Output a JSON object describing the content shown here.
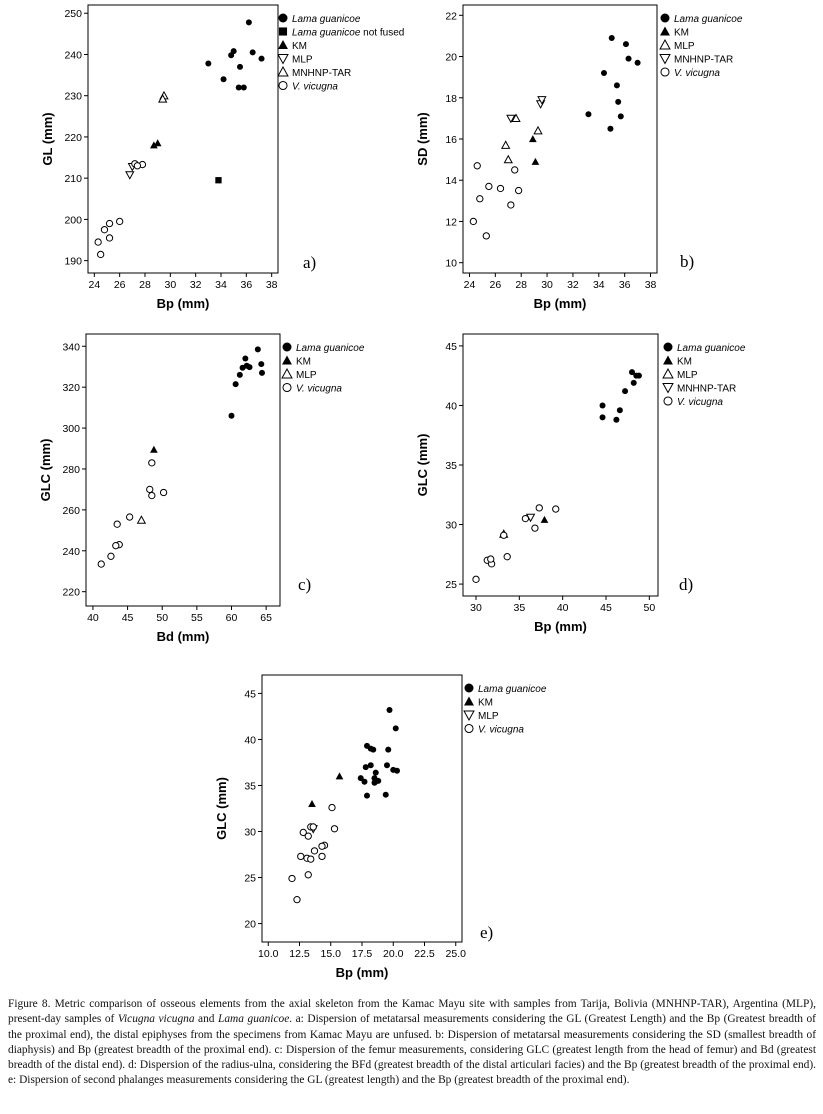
{
  "figure": {
    "caption_parts": [
      "Figure 8. Metric comparison of osseous elements from the axial skeleton from the Kamac Mayu site with samples from Tarija, Bolivia (MNHNP-TAR), Argentina (MLP), present-day samples of ",
      "Vicugna vicugna",
      " and ",
      "Lama guanicoe",
      ". a: Dispersion of metatarsal measurements considering the GL (Greatest Length) and the Bp (Greatest breadth of the proximal end), the distal epiphyses from the specimens from Kamac Mayu are unfused. b: Dispersion of metatarsal measurements considering the SD (smallest breadth of diaphysis) and Bp (greatest breadth of the proximal end). c: Dispersion of the femur measurements, considering GLC (greatest length from the head of femur) and Bd (greatest breadth of the distal end). d: Dispersion of the radius-ulna, considering the BFd (greatest breadth of the distal articulari facies) and the Bp (greatest breadth of the proximal end). e: Dispersion of second phalanges measurements considering the GL (greatest length) and the Bp (greatest breadth of the proximal end)."
    ]
  },
  "chart_data": [
    {
      "type": "scatter",
      "panel_label": "a)",
      "xlabel": "Bp (mm)",
      "ylabel": "GL (mm)",
      "xlim": [
        23.5,
        38.5
      ],
      "ylim": [
        187,
        252
      ],
      "xticks": [
        24,
        26,
        28,
        30,
        32,
        34,
        36,
        38
      ],
      "yticks": [
        190,
        200,
        210,
        220,
        230,
        240,
        250
      ],
      "series": [
        {
          "name": "Lama guanicoe",
          "italic": true,
          "marker": "filled-circle",
          "points": [
            [
              36.2,
              247.8
            ],
            [
              35,
              240.8
            ],
            [
              34.8,
              239.8
            ],
            [
              36.5,
              240.5
            ],
            [
              37.2,
              239
            ],
            [
              33,
              237.8
            ],
            [
              35.5,
              237
            ],
            [
              34.2,
              234
            ],
            [
              35.4,
              232
            ],
            [
              35.8,
              232
            ]
          ]
        },
        {
          "name": "Lama guanicoe not fused",
          "italic_prefix": "Lama guanicoe",
          "suffix": " not fused",
          "marker": "filled-square",
          "points": [
            [
              33.8,
              209.5
            ]
          ]
        },
        {
          "name": "KM",
          "italic": false,
          "marker": "filled-triangle",
          "points": [
            [
              29,
              218.5
            ],
            [
              28.7,
              218
            ]
          ]
        },
        {
          "name": "MLP",
          "italic": false,
          "marker": "open-triangle-down",
          "points": [
            [
              26.8,
              210.8
            ],
            [
              27,
              212.8
            ]
          ]
        },
        {
          "name": "MNHNP-TAR",
          "italic": false,
          "marker": "open-triangle",
          "points": [
            [
              29.5,
              230
            ],
            [
              29.4,
              229.2
            ]
          ]
        },
        {
          "name": "V. vicugna",
          "italic": true,
          "marker": "open-circle",
          "points": [
            [
              25.2,
              199
            ],
            [
              26,
              199.5
            ],
            [
              24.8,
              197.5
            ],
            [
              25.2,
              195.5
            ],
            [
              24.3,
              194.5
            ],
            [
              24.5,
              191.5
            ],
            [
              27.2,
              213.5
            ],
            [
              27.8,
              213.3
            ],
            [
              27.4,
              213
            ]
          ]
        }
      ]
    },
    {
      "type": "scatter",
      "panel_label": "b)",
      "xlabel": "Bp (mm)",
      "ylabel": "SD (mm)",
      "xlim": [
        23.5,
        38.5
      ],
      "ylim": [
        9.5,
        22.5
      ],
      "xticks": [
        24,
        26,
        28,
        30,
        32,
        34,
        36,
        38
      ],
      "yticks": [
        10,
        12,
        14,
        16,
        18,
        20,
        22
      ],
      "series": [
        {
          "name": "Lama guanicoe",
          "italic": true,
          "marker": "filled-circle",
          "points": [
            [
              35,
              20.9
            ],
            [
              36.1,
              20.6
            ],
            [
              36.3,
              19.9
            ],
            [
              37,
              19.7
            ],
            [
              34.4,
              19.2
            ],
            [
              35.4,
              18.6
            ],
            [
              35.5,
              17.8
            ],
            [
              33.2,
              17.2
            ],
            [
              35.7,
              17.1
            ],
            [
              34.9,
              16.5
            ]
          ]
        },
        {
          "name": "KM",
          "italic": false,
          "marker": "filled-triangle",
          "points": [
            [
              28.9,
              16
            ],
            [
              29.1,
              14.9
            ]
          ]
        },
        {
          "name": "MLP",
          "italic": false,
          "marker": "open-triangle",
          "points": [
            [
              27.6,
              17
            ],
            [
              26.8,
              15.7
            ],
            [
              27,
              15
            ],
            [
              29.3,
              16.4
            ]
          ]
        },
        {
          "name": "MNHNP-TAR",
          "italic": false,
          "marker": "open-triangle-down",
          "points": [
            [
              29.5,
              17.7
            ],
            [
              27.2,
              17
            ],
            [
              29.6,
              17.9
            ]
          ]
        },
        {
          "name": "V. vicugna",
          "italic": true,
          "marker": "open-circle",
          "points": [
            [
              24.6,
              14.7
            ],
            [
              25.5,
              13.7
            ],
            [
              26.4,
              13.6
            ],
            [
              27.5,
              14.5
            ],
            [
              24.8,
              13.1
            ],
            [
              27.8,
              13.5
            ],
            [
              27.2,
              12.8
            ],
            [
              24.3,
              12
            ],
            [
              25.3,
              11.3
            ]
          ]
        }
      ]
    },
    {
      "type": "scatter",
      "panel_label": "c)",
      "xlabel": "Bd (mm)",
      "ylabel": "GLC (mm)",
      "xlim": [
        39,
        67
      ],
      "ylim": [
        213,
        346
      ],
      "xticks": [
        40,
        45,
        50,
        55,
        60,
        65
      ],
      "yticks": [
        220,
        240,
        260,
        280,
        300,
        320,
        340
      ],
      "series": [
        {
          "name": "Lama guanicoe",
          "italic": true,
          "marker": "filled-circle",
          "points": [
            [
              63.8,
              338.5
            ],
            [
              62,
              334
            ],
            [
              62.2,
              330.5
            ],
            [
              61.6,
              329.5
            ],
            [
              62.6,
              329.8
            ],
            [
              64.3,
              331.3
            ],
            [
              64.4,
              327
            ],
            [
              61.2,
              326
            ],
            [
              60.6,
              321.5
            ],
            [
              60,
              306
            ]
          ]
        },
        {
          "name": "KM",
          "italic": false,
          "marker": "filled-triangle",
          "points": [
            [
              48.8,
              289.5
            ]
          ]
        },
        {
          "name": "MLP",
          "italic": false,
          "marker": "open-triangle",
          "points": [
            [
              47,
              255
            ]
          ]
        },
        {
          "name": "V. vicugna",
          "italic": true,
          "marker": "open-circle",
          "points": [
            [
              48.5,
              283
            ],
            [
              48.2,
              270
            ],
            [
              48.5,
              267
            ],
            [
              50.2,
              268.5
            ],
            [
              45.3,
              256.5
            ],
            [
              43.5,
              253
            ],
            [
              43.8,
              243
            ],
            [
              43.3,
              242.5
            ],
            [
              42.6,
              237.3
            ],
            [
              41.2,
              233.5
            ]
          ]
        }
      ]
    },
    {
      "type": "scatter",
      "panel_label": "d)",
      "xlabel": "Bp (mm)",
      "ylabel": "GLC (mm)",
      "xlim": [
        28.5,
        51
      ],
      "ylim": [
        24,
        46
      ],
      "xticks": [
        30,
        35,
        40,
        45,
        50
      ],
      "yticks": [
        25,
        30,
        35,
        40,
        45
      ],
      "series": [
        {
          "name": "Lama guanicoe",
          "italic": true,
          "marker": "filled-circle",
          "points": [
            [
              48,
              42.8
            ],
            [
              48.5,
              42.5
            ],
            [
              48.8,
              42.5
            ],
            [
              48.2,
              41.9
            ],
            [
              47.2,
              41.2
            ],
            [
              44.6,
              40
            ],
            [
              46.6,
              39.6
            ],
            [
              44.6,
              39
            ],
            [
              46.2,
              38.8
            ]
          ]
        },
        {
          "name": "KM",
          "italic": false,
          "marker": "filled-triangle",
          "points": [
            [
              37.9,
              30.4
            ]
          ]
        },
        {
          "name": "MLP",
          "italic": false,
          "marker": "open-triangle",
          "points": [
            [
              33.2,
              29.2
            ]
          ]
        },
        {
          "name": "MNHNP-TAR",
          "italic": false,
          "marker": "open-triangle-down",
          "points": [
            [
              36.3,
              30.6
            ]
          ]
        },
        {
          "name": "V. vicugna",
          "italic": true,
          "marker": "open-circle",
          "points": [
            [
              37.3,
              31.4
            ],
            [
              39.2,
              31.3
            ],
            [
              35.7,
              30.5
            ],
            [
              36.8,
              29.7
            ],
            [
              33.2,
              29.1
            ],
            [
              33.6,
              27.3
            ],
            [
              31.3,
              27
            ],
            [
              31.8,
              26.7
            ],
            [
              31.7,
              27.1
            ],
            [
              30,
              25.4
            ]
          ]
        }
      ]
    },
    {
      "type": "scatter",
      "panel_label": "e)",
      "xlabel": "Bp (mm)",
      "ylabel": "GLC (mm)",
      "xlim": [
        9.5,
        25.5
      ],
      "ylim": [
        18,
        47
      ],
      "xticks": [
        10.0,
        12.5,
        15.0,
        17.5,
        20.0,
        22.5,
        25.0
      ],
      "yticks": [
        20,
        25,
        30,
        35,
        40,
        45
      ],
      "series": [
        {
          "name": "Lama guanicoe",
          "italic": true,
          "marker": "filled-circle",
          "points": [
            [
              19.7,
              43.2
            ],
            [
              20.2,
              41.2
            ],
            [
              17.9,
              39.3
            ],
            [
              18.2,
              39
            ],
            [
              18.4,
              38.9
            ],
            [
              19.6,
              38.9
            ],
            [
              19.5,
              37.2
            ],
            [
              17.8,
              37
            ],
            [
              18.2,
              37.2
            ],
            [
              20,
              36.7
            ],
            [
              20.3,
              36.6
            ],
            [
              18.6,
              36.4
            ],
            [
              18.5,
              35.8
            ],
            [
              17.4,
              35.8
            ],
            [
              18.8,
              35.5
            ],
            [
              17.7,
              35.4
            ],
            [
              18.5,
              35.3
            ],
            [
              17.9,
              33.9
            ],
            [
              19.4,
              34
            ]
          ]
        },
        {
          "name": "KM",
          "italic": false,
          "marker": "filled-triangle",
          "points": [
            [
              15.7,
              36
            ],
            [
              13.5,
              33
            ]
          ]
        },
        {
          "name": "MLP",
          "italic": false,
          "marker": "open-triangle-down",
          "points": [
            [
              13.6,
              30.3
            ]
          ]
        },
        {
          "name": "V. vicugna",
          "italic": true,
          "marker": "open-circle",
          "points": [
            [
              15.1,
              32.6
            ],
            [
              13.4,
              30.5
            ],
            [
              13.6,
              30.5
            ],
            [
              12.8,
              29.9
            ],
            [
              15.3,
              30.3
            ],
            [
              13.2,
              29.5
            ],
            [
              14.5,
              28.5
            ],
            [
              14.3,
              28.4
            ],
            [
              13.7,
              27.9
            ],
            [
              12.6,
              27.3
            ],
            [
              13.1,
              27.1
            ],
            [
              14.3,
              27.3
            ],
            [
              13.4,
              27
            ],
            [
              13.2,
              25.3
            ],
            [
              11.9,
              24.9
            ],
            [
              12.3,
              22.6
            ]
          ]
        }
      ]
    }
  ]
}
